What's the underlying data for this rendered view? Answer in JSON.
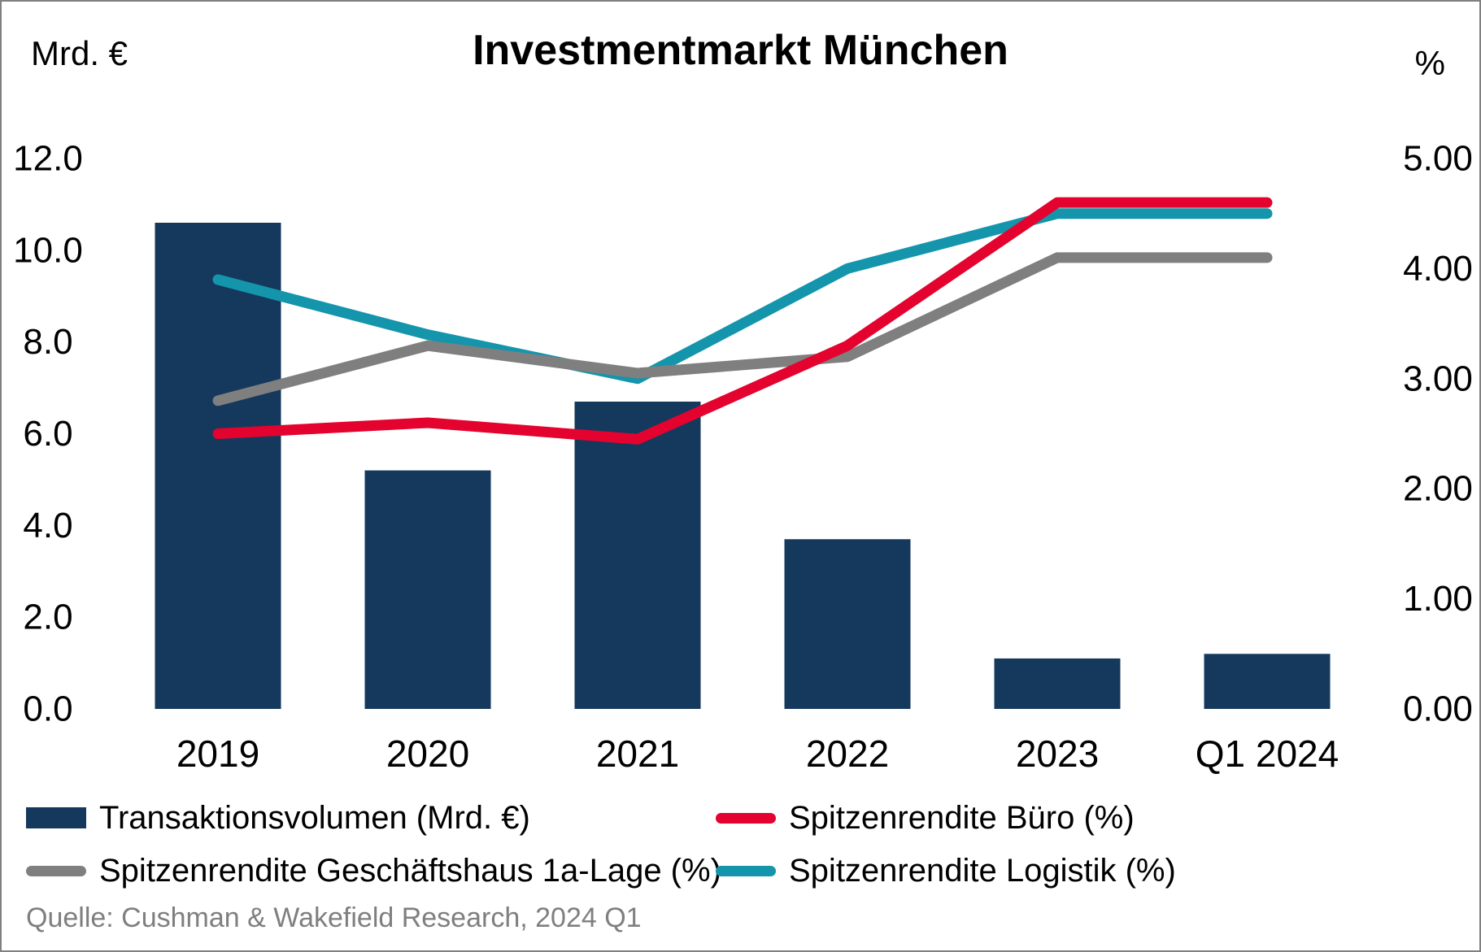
{
  "chart_data": {
    "type": "bar",
    "title": "Investmentmarkt München",
    "categories": [
      "2019",
      "2020",
      "2021",
      "2022",
      "2023",
      "Q1 2024"
    ],
    "bar_series": {
      "name": "Transaktionsvolumen (Mrd. €)",
      "values": [
        10.6,
        5.2,
        6.7,
        3.7,
        1.1,
        1.2
      ],
      "color": "#14395D"
    },
    "line_series": [
      {
        "name": "Spitzenrendite Büro (%)",
        "values": [
          2.5,
          2.6,
          2.45,
          3.3,
          4.6,
          4.6
        ],
        "color": "#E4032E"
      },
      {
        "name": "Spitzenrendite Geschäftshaus 1a-Lage (%)",
        "values": [
          2.8,
          3.3,
          3.05,
          3.2,
          4.1,
          4.1
        ],
        "color": "#7F7F7F"
      },
      {
        "name": "Spitzenrendite Logistik (%)",
        "values": [
          3.9,
          3.4,
          3.0,
          4.0,
          4.5,
          4.5
        ],
        "color": "#1495AC"
      }
    ],
    "left_axis": {
      "unit": "Mrd. €",
      "ticks": [
        "0.0",
        "2.0",
        "4.0",
        "6.0",
        "8.0",
        "10.0",
        "12.0"
      ],
      "min": 0,
      "max": 12
    },
    "right_axis": {
      "unit": "%",
      "ticks": [
        "0.00",
        "1.00",
        "2.00",
        "3.00",
        "4.00",
        "5.00"
      ],
      "min": 0,
      "max": 5
    },
    "grid": false,
    "legend_position": "bottom"
  },
  "legend": {
    "items": [
      {
        "label": "Transaktionsvolumen (Mrd. €)",
        "marker": "bar"
      },
      {
        "label": "Spitzenrendite Büro (%)",
        "marker": "line"
      },
      {
        "label": "Spitzenrendite Geschäftshaus 1a-Lage (%)",
        "marker": "line"
      },
      {
        "label": "Spitzenrendite Logistik (%)",
        "marker": "line"
      }
    ]
  },
  "footer": {
    "source": "Quelle: Cushman & Wakefield Research, 2024 Q1"
  }
}
